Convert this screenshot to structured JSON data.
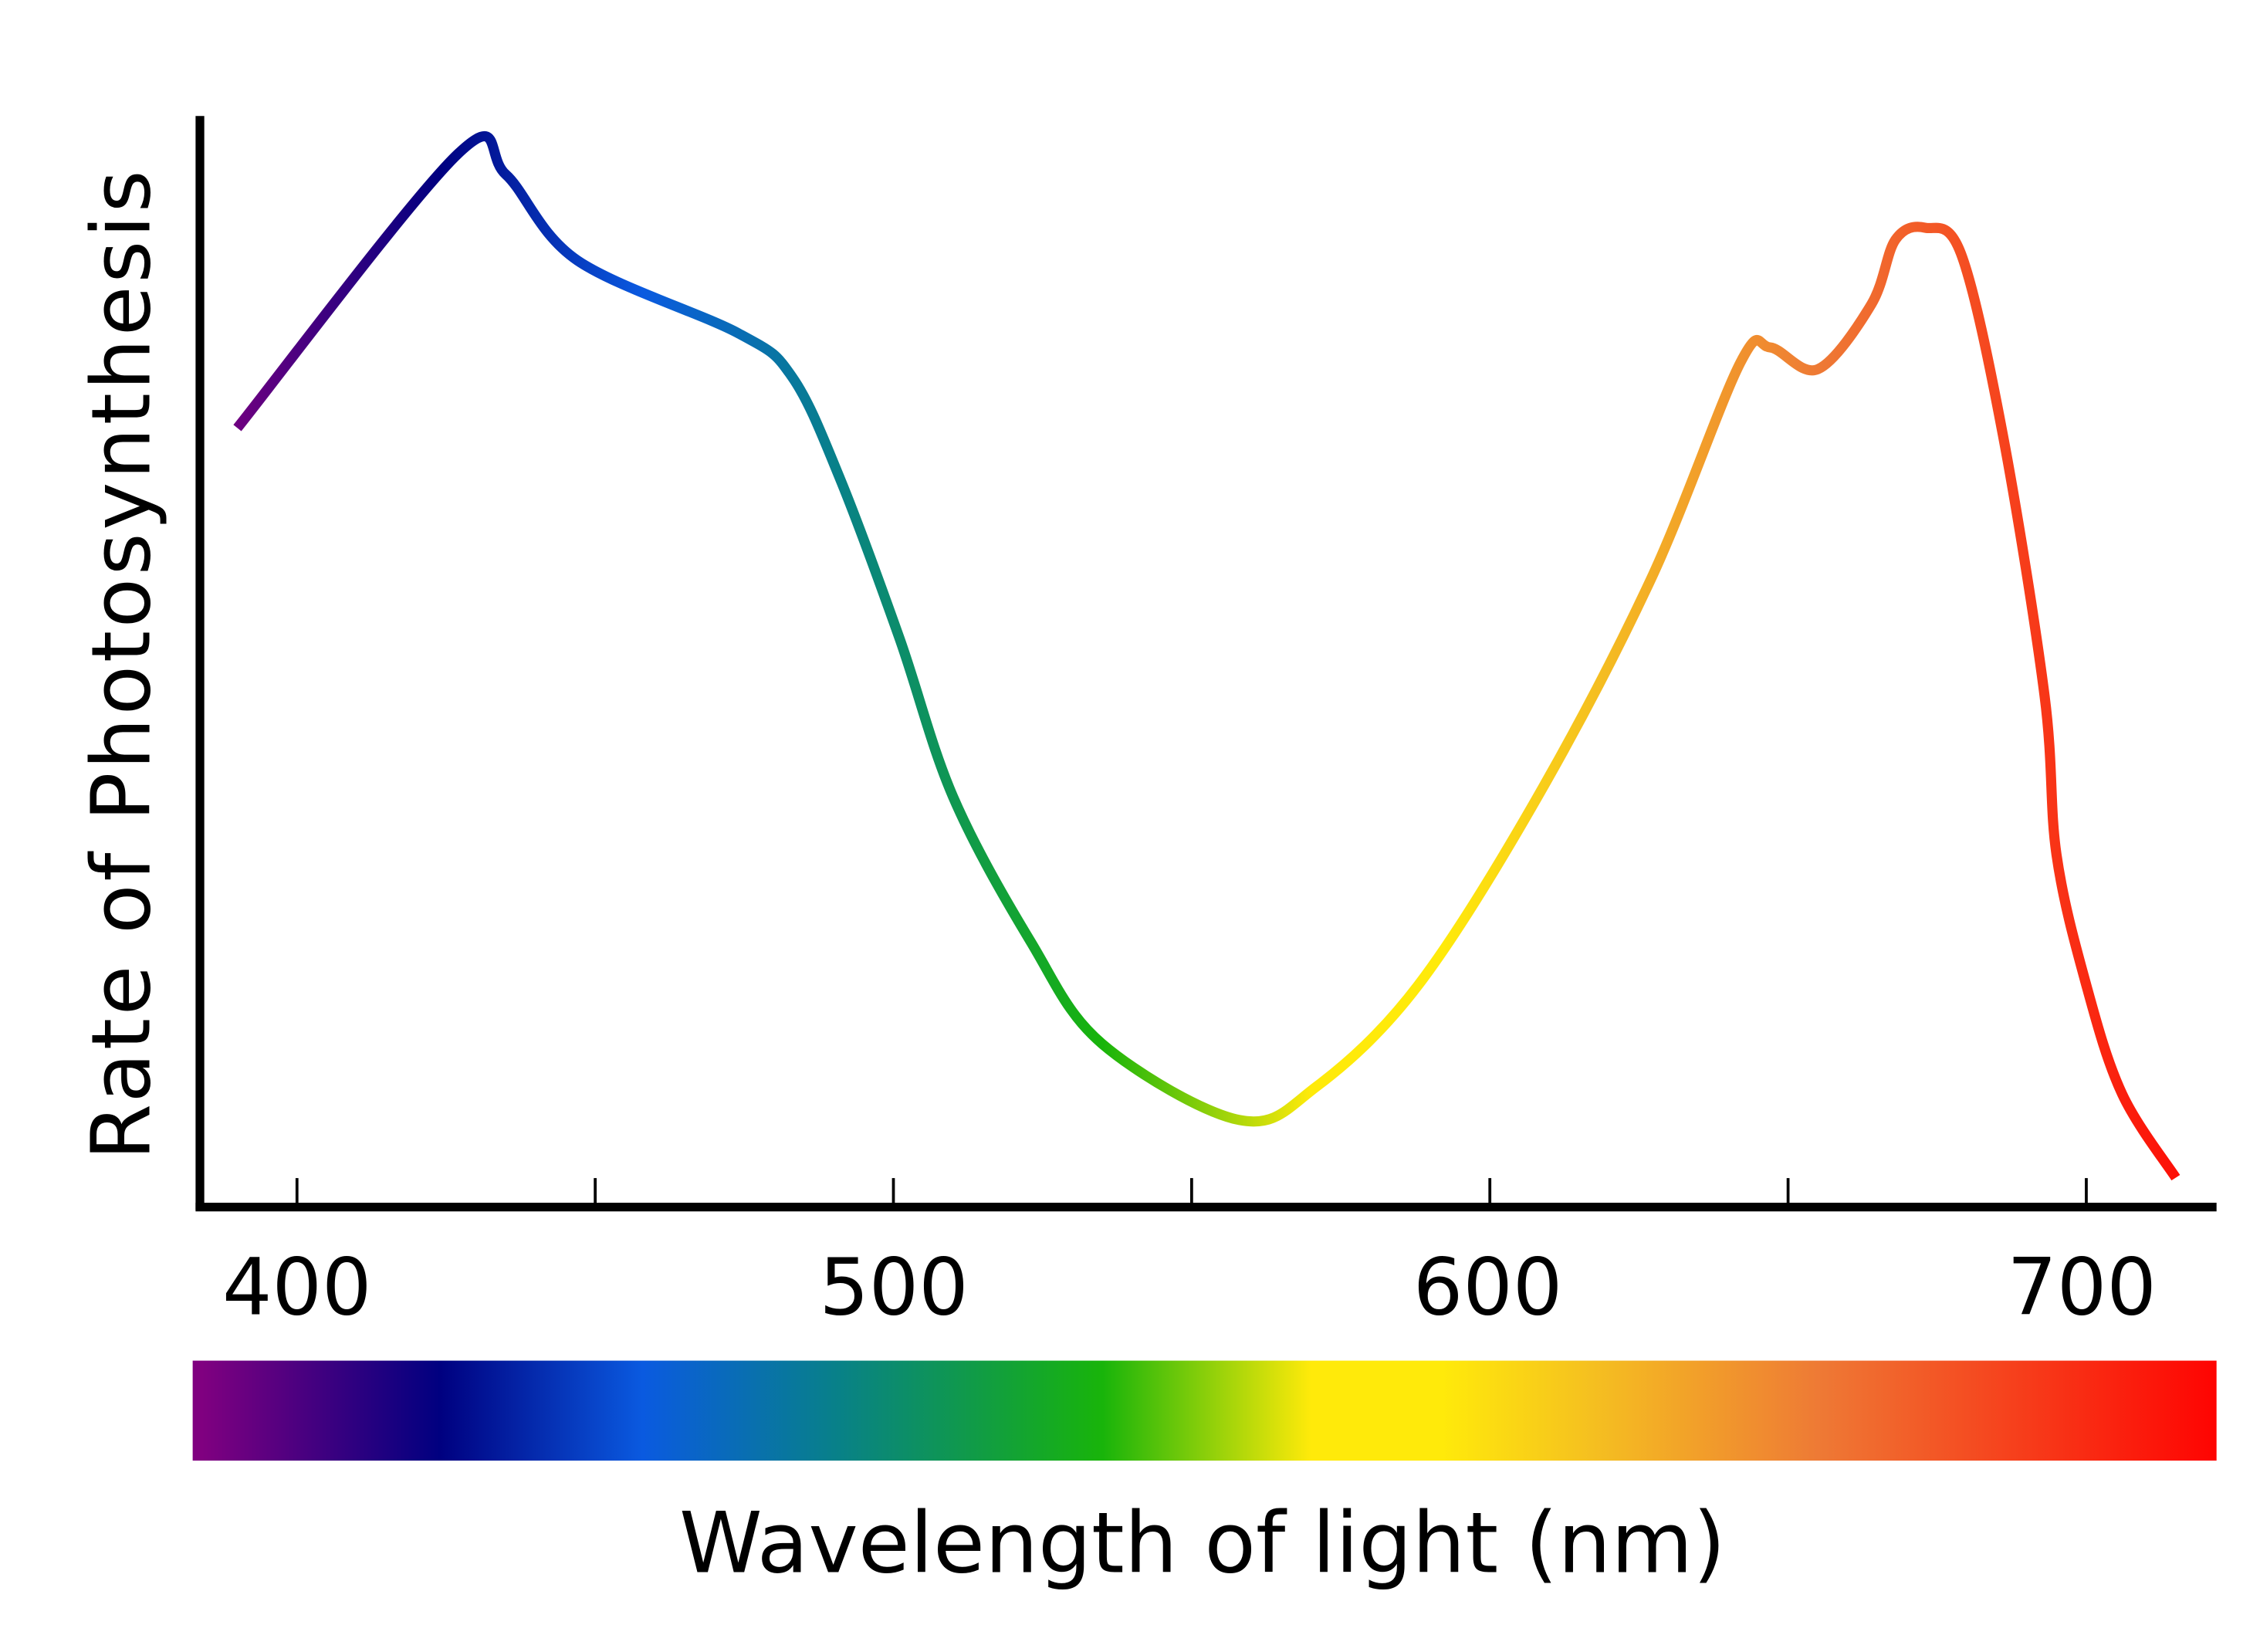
{
  "chart_data": {
    "type": "line",
    "title": "",
    "xlabel": "Wavelength of light (nm)",
    "ylabel": "Rate of Photosynthesis",
    "xlim": [
      384,
      724
    ],
    "ylim": [
      0,
      1
    ],
    "x_ticks": [
      400,
      450,
      500,
      550,
      600,
      650,
      700
    ],
    "x_tick_labels": [
      "400",
      "500",
      "600",
      "700"
    ],
    "y_ticks_labeled": false,
    "grid": false,
    "legend": "none",
    "series": [
      {
        "x": [
          390,
          427,
          435,
          447,
          474,
          483,
          491,
          501,
          510,
          523,
          535,
          558,
          571,
          588,
          608,
          627,
          642,
          647,
          655,
          664,
          668,
          673,
          679,
          686,
          693,
          695,
          700,
          706,
          715
        ],
        "y": [
          0.716,
          0.968,
          0.949,
          0.87,
          0.803,
          0.763,
          0.67,
          0.523,
          0.377,
          0.244,
          0.15,
          0.08,
          0.111,
          0.204,
          0.377,
          0.577,
          0.776,
          0.79,
          0.77,
          0.83,
          0.889,
          0.9,
          0.876,
          0.71,
          0.47,
          0.324,
          0.204,
          0.104,
          0.027
        ]
      }
    ],
    "line_color": "spectral gradient matching wavelength",
    "spectrum_bar_colors": [
      {
        "nm": 384,
        "color": "#800080"
      },
      {
        "nm": 424,
        "color": "#000080"
      },
      {
        "nm": 458,
        "color": "#0a5ae0"
      },
      {
        "nm": 490,
        "color": "#08808a"
      },
      {
        "nm": 535,
        "color": "#18b40a"
      },
      {
        "nm": 570,
        "color": "#ffea0a"
      },
      {
        "nm": 592,
        "color": "#ffea0a"
      },
      {
        "nm": 617,
        "color": "#f5c020"
      },
      {
        "nm": 655,
        "color": "#ee7a35"
      },
      {
        "nm": 724,
        "color": "#ff0000"
      }
    ]
  }
}
